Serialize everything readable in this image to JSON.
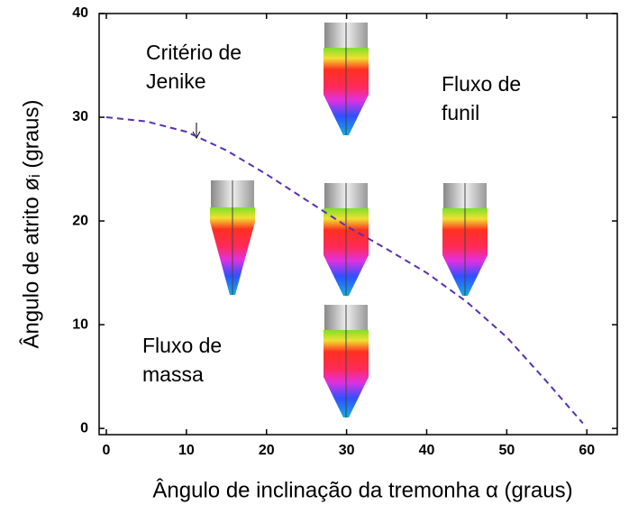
{
  "chart_data": {
    "type": "line",
    "x_label": "Ângulo de inclinação da tremonha α (graus)",
    "y_label": "Ângulo de atrito øᵢ (graus)",
    "x": [
      0,
      5,
      10,
      15,
      20,
      25,
      30,
      35,
      40,
      45,
      50,
      55,
      59.5
    ],
    "series": [
      {
        "name": "Critério de Jenike",
        "color": "#5a2fb5",
        "dashed": true,
        "values": [
          30,
          29.6,
          28.6,
          26.8,
          24.5,
          22,
          19.5,
          17.3,
          15,
          12.2,
          8.8,
          4.5,
          0.5
        ]
      }
    ],
    "annotations": [
      {
        "lines": [
          "Critério de",
          "Jenike"
        ]
      },
      {
        "lines": [
          "Fluxo de",
          "funil"
        ]
      },
      {
        "lines": [
          "Fluxo de",
          "massa"
        ]
      }
    ],
    "xlim": [
      -0.9,
      63.8
    ],
    "ylim": [
      -0.6,
      40
    ],
    "xticks": [
      0,
      10,
      20,
      30,
      40,
      50,
      60
    ],
    "yticks": [
      0,
      10,
      20,
      30,
      40
    ]
  }
}
